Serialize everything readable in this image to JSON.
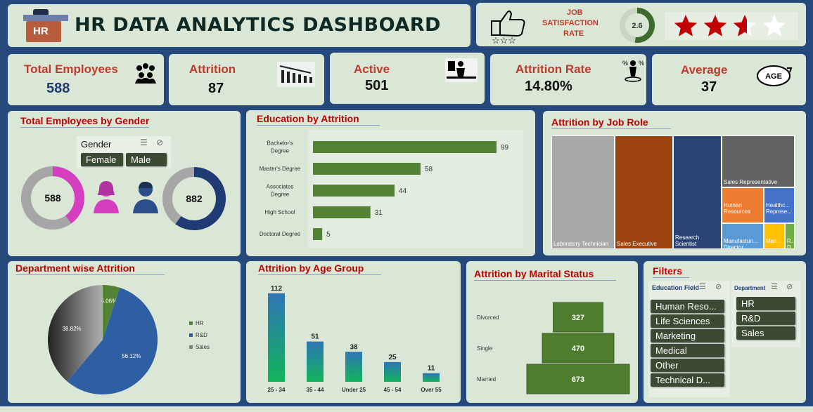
{
  "header": {
    "title": "HR DATA ANALYTICS DASHBOARD",
    "logo_text": "HR"
  },
  "satisfaction": {
    "label_line1": "JOB",
    "label_line2": "SATISFACTION",
    "label_line3": "RATE",
    "value": "2.6",
    "value_fraction": 0.52,
    "stars_filled": 2.6,
    "stars_total": 4
  },
  "kpis": {
    "total_employees": {
      "label": "Total Employees",
      "value": "588"
    },
    "attrition": {
      "label": "Attrition",
      "value": "87"
    },
    "active": {
      "label": "Active",
      "value": "501"
    },
    "attrition_rate": {
      "label": "Attrition Rate",
      "value": "14.80%"
    },
    "average_age": {
      "label": "Average",
      "value": "37",
      "icon_text": "AGE"
    }
  },
  "gender": {
    "title": "Total Employees by Gender",
    "slicer_title": "Gender",
    "options": [
      "Female",
      "Male"
    ],
    "female_total": "588",
    "male_total": "882",
    "female_share": 0.4,
    "male_share": 0.6
  },
  "education": {
    "title": "Education by Attrition",
    "chart_data": {
      "type": "bar",
      "categories": [
        "Bachelor's Degree",
        "Master's Degree",
        "Associates Degree",
        "High School",
        "Doctoral Degree"
      ],
      "category_lines": [
        [
          "Bachelor's",
          "Degree"
        ],
        [
          "Master's Degree"
        ],
        [
          "Associates",
          "Degree"
        ],
        [
          "High School"
        ],
        [
          "Doctoral Degree"
        ]
      ],
      "values": [
        99,
        58,
        44,
        31,
        5
      ],
      "title": "Education by Attrition",
      "xlim": [
        0,
        110
      ]
    }
  },
  "job_role": {
    "title": "Attrition by Job Role",
    "chart_data": {
      "type": "treemap",
      "items": [
        {
          "name": "Laboratory Technician",
          "color": "#a9a9a9"
        },
        {
          "name": "Sales Executive",
          "color": "#9c4310"
        },
        {
          "name": "Research Scientist",
          "color": "#2b4478"
        },
        {
          "name": "Sales Representative",
          "color": "#636363"
        },
        {
          "name": "Human Resources",
          "color": "#ed7d31"
        },
        {
          "name": "Healthc... Represe...",
          "color": "#4472c4"
        },
        {
          "name": "Manufacturi... Director",
          "color": "#5b9bd5"
        },
        {
          "name": "Man...",
          "color": "#ffc000"
        },
        {
          "name": "R... D...",
          "color": "#70ad47"
        }
      ]
    }
  },
  "department": {
    "title": "Department wise Attrition",
    "chart_data": {
      "type": "pie",
      "categories": [
        "HR",
        "R&D",
        "Sales"
      ],
      "values": [
        5.06,
        56.12,
        38.82
      ],
      "labels": [
        "5.06%",
        "56.12%",
        "38.82%"
      ],
      "colors": [
        "#548235",
        "#2e5fa3",
        "#7f7f7f"
      ],
      "legend": "right"
    }
  },
  "age_group": {
    "title": "Attrition by Age Group",
    "chart_data": {
      "type": "bar",
      "categories": [
        "25 - 34",
        "35 - 44",
        "Under 25",
        "45 - 54",
        "Over 55"
      ],
      "values": [
        112,
        51,
        38,
        25,
        11
      ],
      "ylim": [
        0,
        120
      ]
    }
  },
  "marital": {
    "title": "Attrition by Marital Status",
    "chart_data": {
      "type": "funnel",
      "categories": [
        "Divorced",
        "Single",
        "Married"
      ],
      "values": [
        327,
        470,
        673
      ]
    }
  },
  "filters": {
    "title": "Filters",
    "education_field": {
      "label": "Education Field",
      "options": [
        "Human Reso...",
        "Life Sciences",
        "Marketing",
        "Medical",
        "Other",
        "Technical D..."
      ]
    },
    "department": {
      "label": "Department",
      "options": [
        "HR",
        "R&D",
        "Sales"
      ]
    }
  },
  "colors": {
    "background": "#24497a",
    "panel": "#dae7d6",
    "accent_red": "#c00000",
    "bar_green": "#548235"
  }
}
